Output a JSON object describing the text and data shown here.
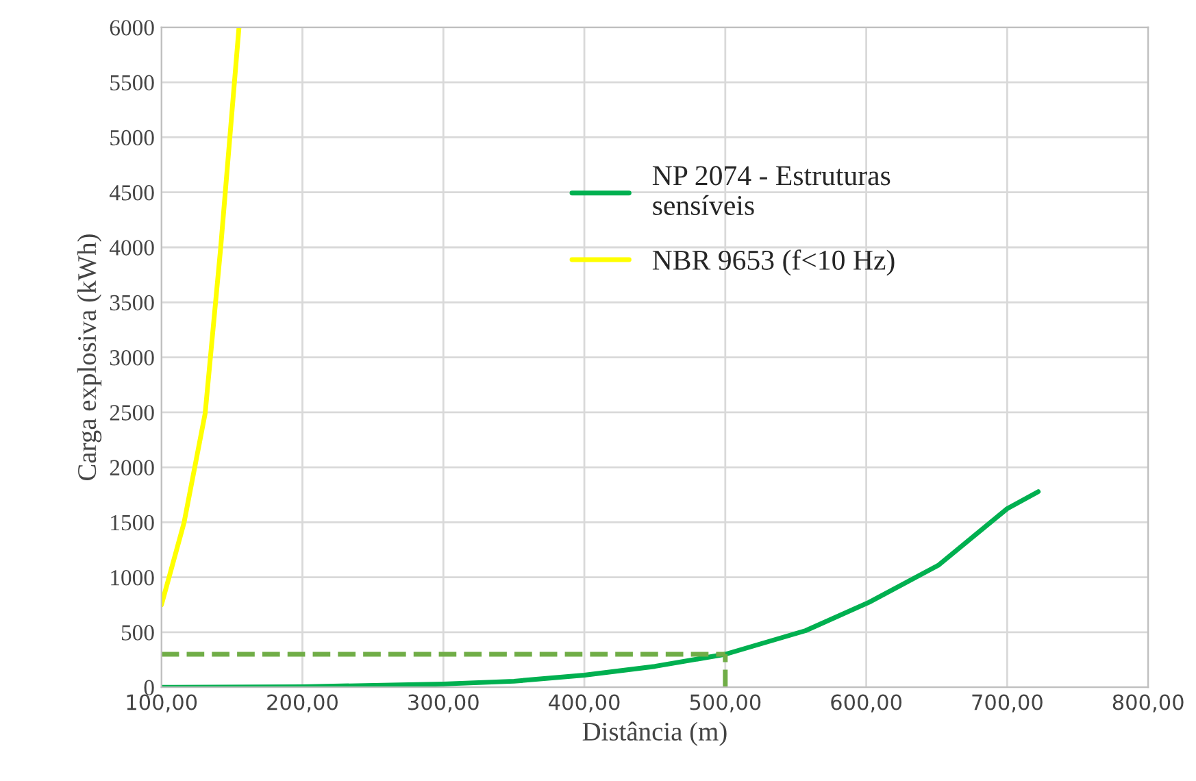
{
  "chart_data": {
    "type": "line",
    "xlabel": "Distância (m)",
    "ylabel": "Carga explosiva (kWh)",
    "xlim": [
      100,
      800
    ],
    "xticks": [
      {
        "value": 100,
        "label": "100,00"
      },
      {
        "value": 200,
        "label": "200,00"
      },
      {
        "value": 300,
        "label": "300,00"
      },
      {
        "value": 400,
        "label": "400,00"
      },
      {
        "value": 500,
        "label": "500,00"
      },
      {
        "value": 600,
        "label": "600,00"
      },
      {
        "value": 700,
        "label": "700,00"
      },
      {
        "value": 800,
        "label": "800,00"
      }
    ],
    "ylim": [
      0,
      6000
    ],
    "yticks": [
      0,
      500,
      1000,
      1500,
      2000,
      2500,
      3000,
      3500,
      4000,
      4500,
      5000,
      5500,
      6000
    ],
    "grid": true,
    "legend": "top",
    "line_style": "solid",
    "marker": "none",
    "series": [
      {
        "name": "NP 2074 - Estruturas\nsensíveis",
        "color": "#00b050",
        "x": [
          100,
          200,
          300,
          350,
          400,
          450,
          500,
          557,
          602,
          651,
          700,
          722
        ],
        "values": [
          0,
          5,
          30,
          55,
          110,
          190,
          300,
          515,
          773,
          1108,
          1624,
          1778
        ]
      },
      {
        "name": "NBR 9653 (f<10 Hz)",
        "color": "#ffff00",
        "x": [
          100,
          116,
          131,
          142,
          155
        ],
        "values": [
          750,
          1495,
          2490,
          3995,
          6000
        ]
      },
      {
        "color": "#70ad47",
        "line_style": "dashed",
        "x": [
          100,
          500
        ],
        "values": [
          300,
          300
        ]
      },
      {
        "color": "#70ad47",
        "line_style": "dashed",
        "x": [
          500,
          500
        ],
        "values": [
          0,
          300
        ]
      }
    ]
  }
}
